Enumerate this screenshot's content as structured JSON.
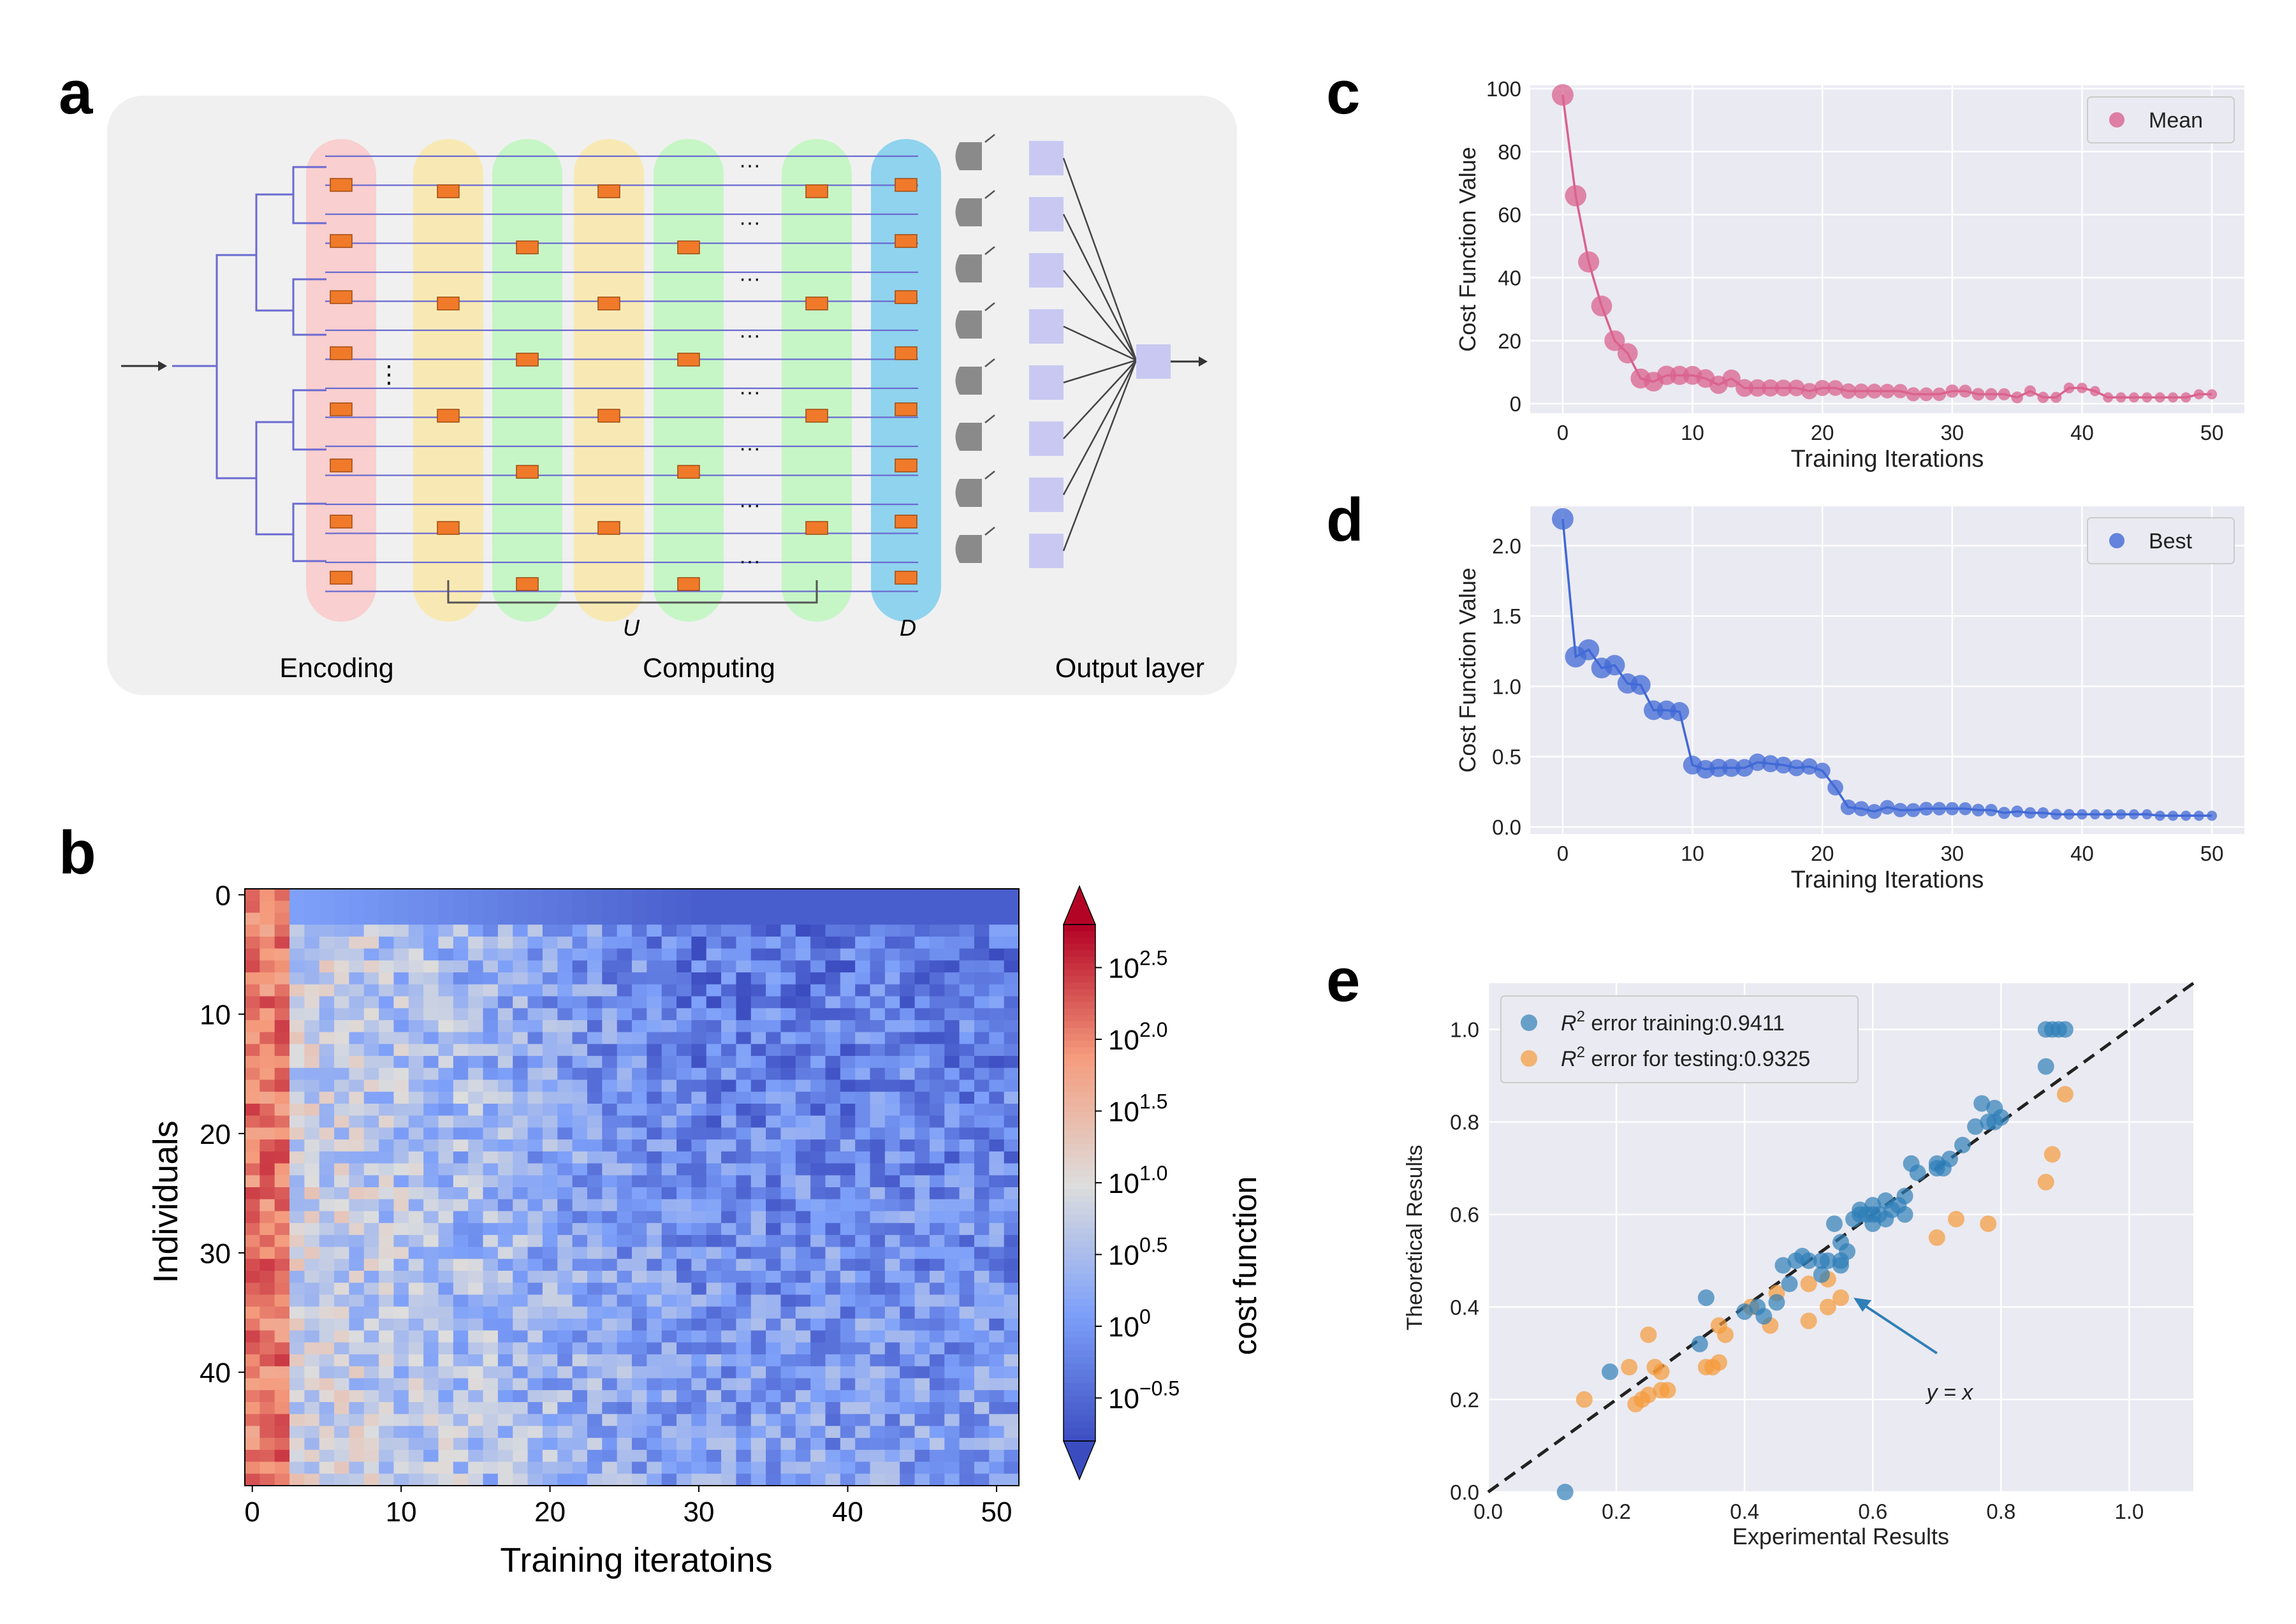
{
  "panel_letters": {
    "a": "a",
    "b": "b",
    "c": "c",
    "d": "d",
    "e": "e"
  },
  "colors": {
    "encoding": "#f9cfcf",
    "computing_yellow": "#f8e9b4",
    "computing_green": "#c6f6c6",
    "decoding": "#8fd3ee",
    "waveguide": "#6a6ad0",
    "coupler": "#f07a2a",
    "detector": "#8a8a8a",
    "output_node": "#c9c8f2",
    "panel_bg": "#f0f0f0",
    "mean": "#d9638d",
    "best": "#4169d6",
    "train": "#2f7fb8",
    "test": "#f59a3a",
    "plot_bg": "#eaeaf2"
  },
  "diagram_a": {
    "labels": {
      "encoding": "Encoding",
      "computing": "Computing",
      "output": "Output layer"
    },
    "symbols": {
      "U": "U",
      "D": "D",
      "dots": "···",
      "vdots": "⋮"
    }
  },
  "chart_data": [
    {
      "id": "b",
      "type": "heatmap",
      "xlabel": "Training iteratoins",
      "ylabel": "Individuals",
      "x_ticks": [
        "0",
        "10",
        "20",
        "30",
        "40",
        "50"
      ],
      "y_ticks": [
        "0",
        "10",
        "20",
        "30",
        "40"
      ],
      "n_cols": 52,
      "n_rows": 50,
      "colorbar": {
        "label": "cost function",
        "scale": "log10",
        "min": -0.8,
        "max": 2.8,
        "ticks": [
          {
            "base": "10",
            "exp": "2.5",
            "v": 2.5
          },
          {
            "base": "10",
            "exp": "2.0",
            "v": 2.0
          },
          {
            "base": "10",
            "exp": "1.5",
            "v": 1.5
          },
          {
            "base": "10",
            "exp": "1.0",
            "v": 1.0
          },
          {
            "base": "10",
            "exp": "0.5",
            "v": 0.5
          },
          {
            "base": "10",
            "exp": "0",
            "v": 0.0
          },
          {
            "base": "10",
            "exp": "−0.5",
            "v": -0.5
          }
        ]
      },
      "colormap": "coolwarm",
      "description_pattern": "log10 cost decreases with training iteration; first columns ~2.0-2.5, later columns ~-0.5 for top individuals"
    },
    {
      "id": "c",
      "type": "line",
      "xlabel": "Training Iterations",
      "ylabel": "Cost Function Value",
      "xlim": [
        -2.5,
        52.5
      ],
      "ylim": [
        -3,
        101
      ],
      "x_ticks": [
        0,
        10,
        20,
        30,
        40,
        50
      ],
      "y_ticks": [
        0,
        20,
        40,
        60,
        80,
        100
      ],
      "legend": "top-right",
      "grid": true,
      "series": [
        {
          "name": "Mean",
          "x": [
            0,
            1,
            2,
            3,
            4,
            5,
            6,
            7,
            8,
            9,
            10,
            11,
            12,
            13,
            14,
            15,
            16,
            17,
            18,
            19,
            20,
            21,
            22,
            23,
            24,
            25,
            26,
            27,
            28,
            29,
            30,
            31,
            32,
            33,
            34,
            35,
            36,
            37,
            38,
            39,
            40,
            41,
            42,
            43,
            44,
            45,
            46,
            47,
            48,
            49,
            50
          ],
          "y": [
            98,
            66,
            45,
            31,
            20,
            16,
            8,
            7,
            9,
            9,
            9,
            8,
            6,
            8,
            5,
            5,
            5,
            5,
            5,
            4,
            5,
            5,
            4,
            4,
            4,
            4,
            4,
            3,
            3,
            3,
            4,
            4,
            3,
            3,
            3,
            2,
            4,
            2,
            2,
            5,
            5,
            4,
            2,
            2,
            2,
            2,
            2,
            2,
            2,
            3,
            3
          ]
        }
      ]
    },
    {
      "id": "d",
      "type": "line",
      "xlabel": "Training Iterations",
      "ylabel": "Cost Function Value",
      "xlim": [
        -2.5,
        52.5
      ],
      "ylim": [
        -0.05,
        2.28
      ],
      "x_ticks": [
        0,
        10,
        20,
        30,
        40,
        50
      ],
      "y_ticks": [
        "0.0",
        "0.5",
        "1.0",
        "1.5",
        "2.0"
      ],
      "legend": "top-right",
      "grid": true,
      "series": [
        {
          "name": "Best",
          "x": [
            0,
            1,
            2,
            3,
            4,
            5,
            6,
            7,
            8,
            9,
            10,
            11,
            12,
            13,
            14,
            15,
            16,
            17,
            18,
            19,
            20,
            21,
            22,
            23,
            24,
            25,
            26,
            27,
            28,
            29,
            30,
            31,
            32,
            33,
            34,
            35,
            36,
            37,
            38,
            39,
            40,
            41,
            42,
            43,
            44,
            45,
            46,
            47,
            48,
            49,
            50
          ],
          "y": [
            2.19,
            1.21,
            1.26,
            1.13,
            1.15,
            1.02,
            1.01,
            0.83,
            0.83,
            0.82,
            0.44,
            0.41,
            0.42,
            0.42,
            0.42,
            0.46,
            0.45,
            0.44,
            0.42,
            0.43,
            0.4,
            0.28,
            0.14,
            0.13,
            0.11,
            0.14,
            0.12,
            0.12,
            0.13,
            0.13,
            0.13,
            0.13,
            0.12,
            0.12,
            0.1,
            0.11,
            0.1,
            0.1,
            0.09,
            0.09,
            0.09,
            0.09,
            0.09,
            0.09,
            0.09,
            0.09,
            0.08,
            0.08,
            0.08,
            0.08,
            0.08
          ]
        }
      ]
    },
    {
      "id": "e",
      "type": "scatter",
      "xlabel": "Experimental Results",
      "ylabel": "Theoretical Results",
      "xlim": [
        0.0,
        1.1
      ],
      "ylim": [
        0.0,
        1.1
      ],
      "x_ticks": [
        "0.0",
        "0.2",
        "0.4",
        "0.6",
        "0.8",
        "1.0"
      ],
      "y_ticks": [
        "0.0",
        "0.2",
        "0.4",
        "0.6",
        "0.8",
        "1.0"
      ],
      "legend": "top-left",
      "grid": true,
      "annotation": {
        "text": "y  =  x",
        "arrow_from": [
          0.7,
          0.3
        ],
        "arrow_to": [
          0.57,
          0.42
        ]
      },
      "series": [
        {
          "name": "R² error training:0.9411",
          "legend_prefix": "R",
          "legend_sup": "2",
          "legend_rest": " error training:0.9411",
          "points": [
            [
              0.12,
              0.0
            ],
            [
              0.19,
              0.26
            ],
            [
              0.33,
              0.32
            ],
            [
              0.34,
              0.42
            ],
            [
              0.4,
              0.39
            ],
            [
              0.42,
              0.4
            ],
            [
              0.43,
              0.38
            ],
            [
              0.45,
              0.41
            ],
            [
              0.46,
              0.49
            ],
            [
              0.47,
              0.45
            ],
            [
              0.48,
              0.5
            ],
            [
              0.49,
              0.51
            ],
            [
              0.5,
              0.5
            ],
            [
              0.52,
              0.47
            ],
            [
              0.53,
              0.5
            ],
            [
              0.54,
              0.58
            ],
            [
              0.55,
              0.5
            ],
            [
              0.56,
              0.52
            ],
            [
              0.57,
              0.59
            ],
            [
              0.58,
              0.61
            ],
            [
              0.59,
              0.6
            ],
            [
              0.6,
              0.62
            ],
            [
              0.61,
              0.6
            ],
            [
              0.62,
              0.59
            ],
            [
              0.63,
              0.61
            ],
            [
              0.64,
              0.62
            ],
            [
              0.65,
              0.64
            ],
            [
              0.66,
              0.71
            ],
            [
              0.67,
              0.69
            ],
            [
              0.7,
              0.71
            ],
            [
              0.71,
              0.7
            ],
            [
              0.72,
              0.72
            ],
            [
              0.74,
              0.75
            ],
            [
              0.76,
              0.79
            ],
            [
              0.77,
              0.84
            ],
            [
              0.78,
              0.8
            ],
            [
              0.79,
              0.83
            ],
            [
              0.8,
              0.81
            ],
            [
              0.87,
              0.92
            ],
            [
              0.87,
              1.0
            ],
            [
              0.88,
              1.0
            ],
            [
              0.89,
              1.0
            ],
            [
              0.9,
              1.0
            ],
            [
              0.58,
              0.6
            ],
            [
              0.6,
              0.58
            ],
            [
              0.55,
              0.54
            ],
            [
              0.6,
              0.6
            ],
            [
              0.62,
              0.63
            ],
            [
              0.65,
              0.6
            ],
            [
              0.7,
              0.7
            ],
            [
              0.79,
              0.8
            ],
            [
              0.52,
              0.5
            ],
            [
              0.55,
              0.49
            ]
          ]
        },
        {
          "name": "R² error for testing:0.9325",
          "legend_prefix": "R",
          "legend_sup": "2",
          "legend_rest": " error for testing:0.9325",
          "points": [
            [
              0.15,
              0.2
            ],
            [
              0.22,
              0.27
            ],
            [
              0.23,
              0.19
            ],
            [
              0.24,
              0.2
            ],
            [
              0.25,
              0.21
            ],
            [
              0.25,
              0.34
            ],
            [
              0.26,
              0.27
            ],
            [
              0.27,
              0.22
            ],
            [
              0.27,
              0.26
            ],
            [
              0.28,
              0.22
            ],
            [
              0.34,
              0.27
            ],
            [
              0.35,
              0.27
            ],
            [
              0.36,
              0.36
            ],
            [
              0.36,
              0.28
            ],
            [
              0.37,
              0.34
            ],
            [
              0.41,
              0.4
            ],
            [
              0.44,
              0.36
            ],
            [
              0.45,
              0.43
            ],
            [
              0.5,
              0.45
            ],
            [
              0.5,
              0.37
            ],
            [
              0.53,
              0.4
            ],
            [
              0.55,
              0.42
            ],
            [
              0.53,
              0.46
            ],
            [
              0.7,
              0.55
            ],
            [
              0.73,
              0.59
            ],
            [
              0.78,
              0.58
            ],
            [
              0.87,
              0.67
            ],
            [
              0.88,
              0.73
            ],
            [
              0.9,
              0.86
            ]
          ]
        }
      ]
    }
  ]
}
